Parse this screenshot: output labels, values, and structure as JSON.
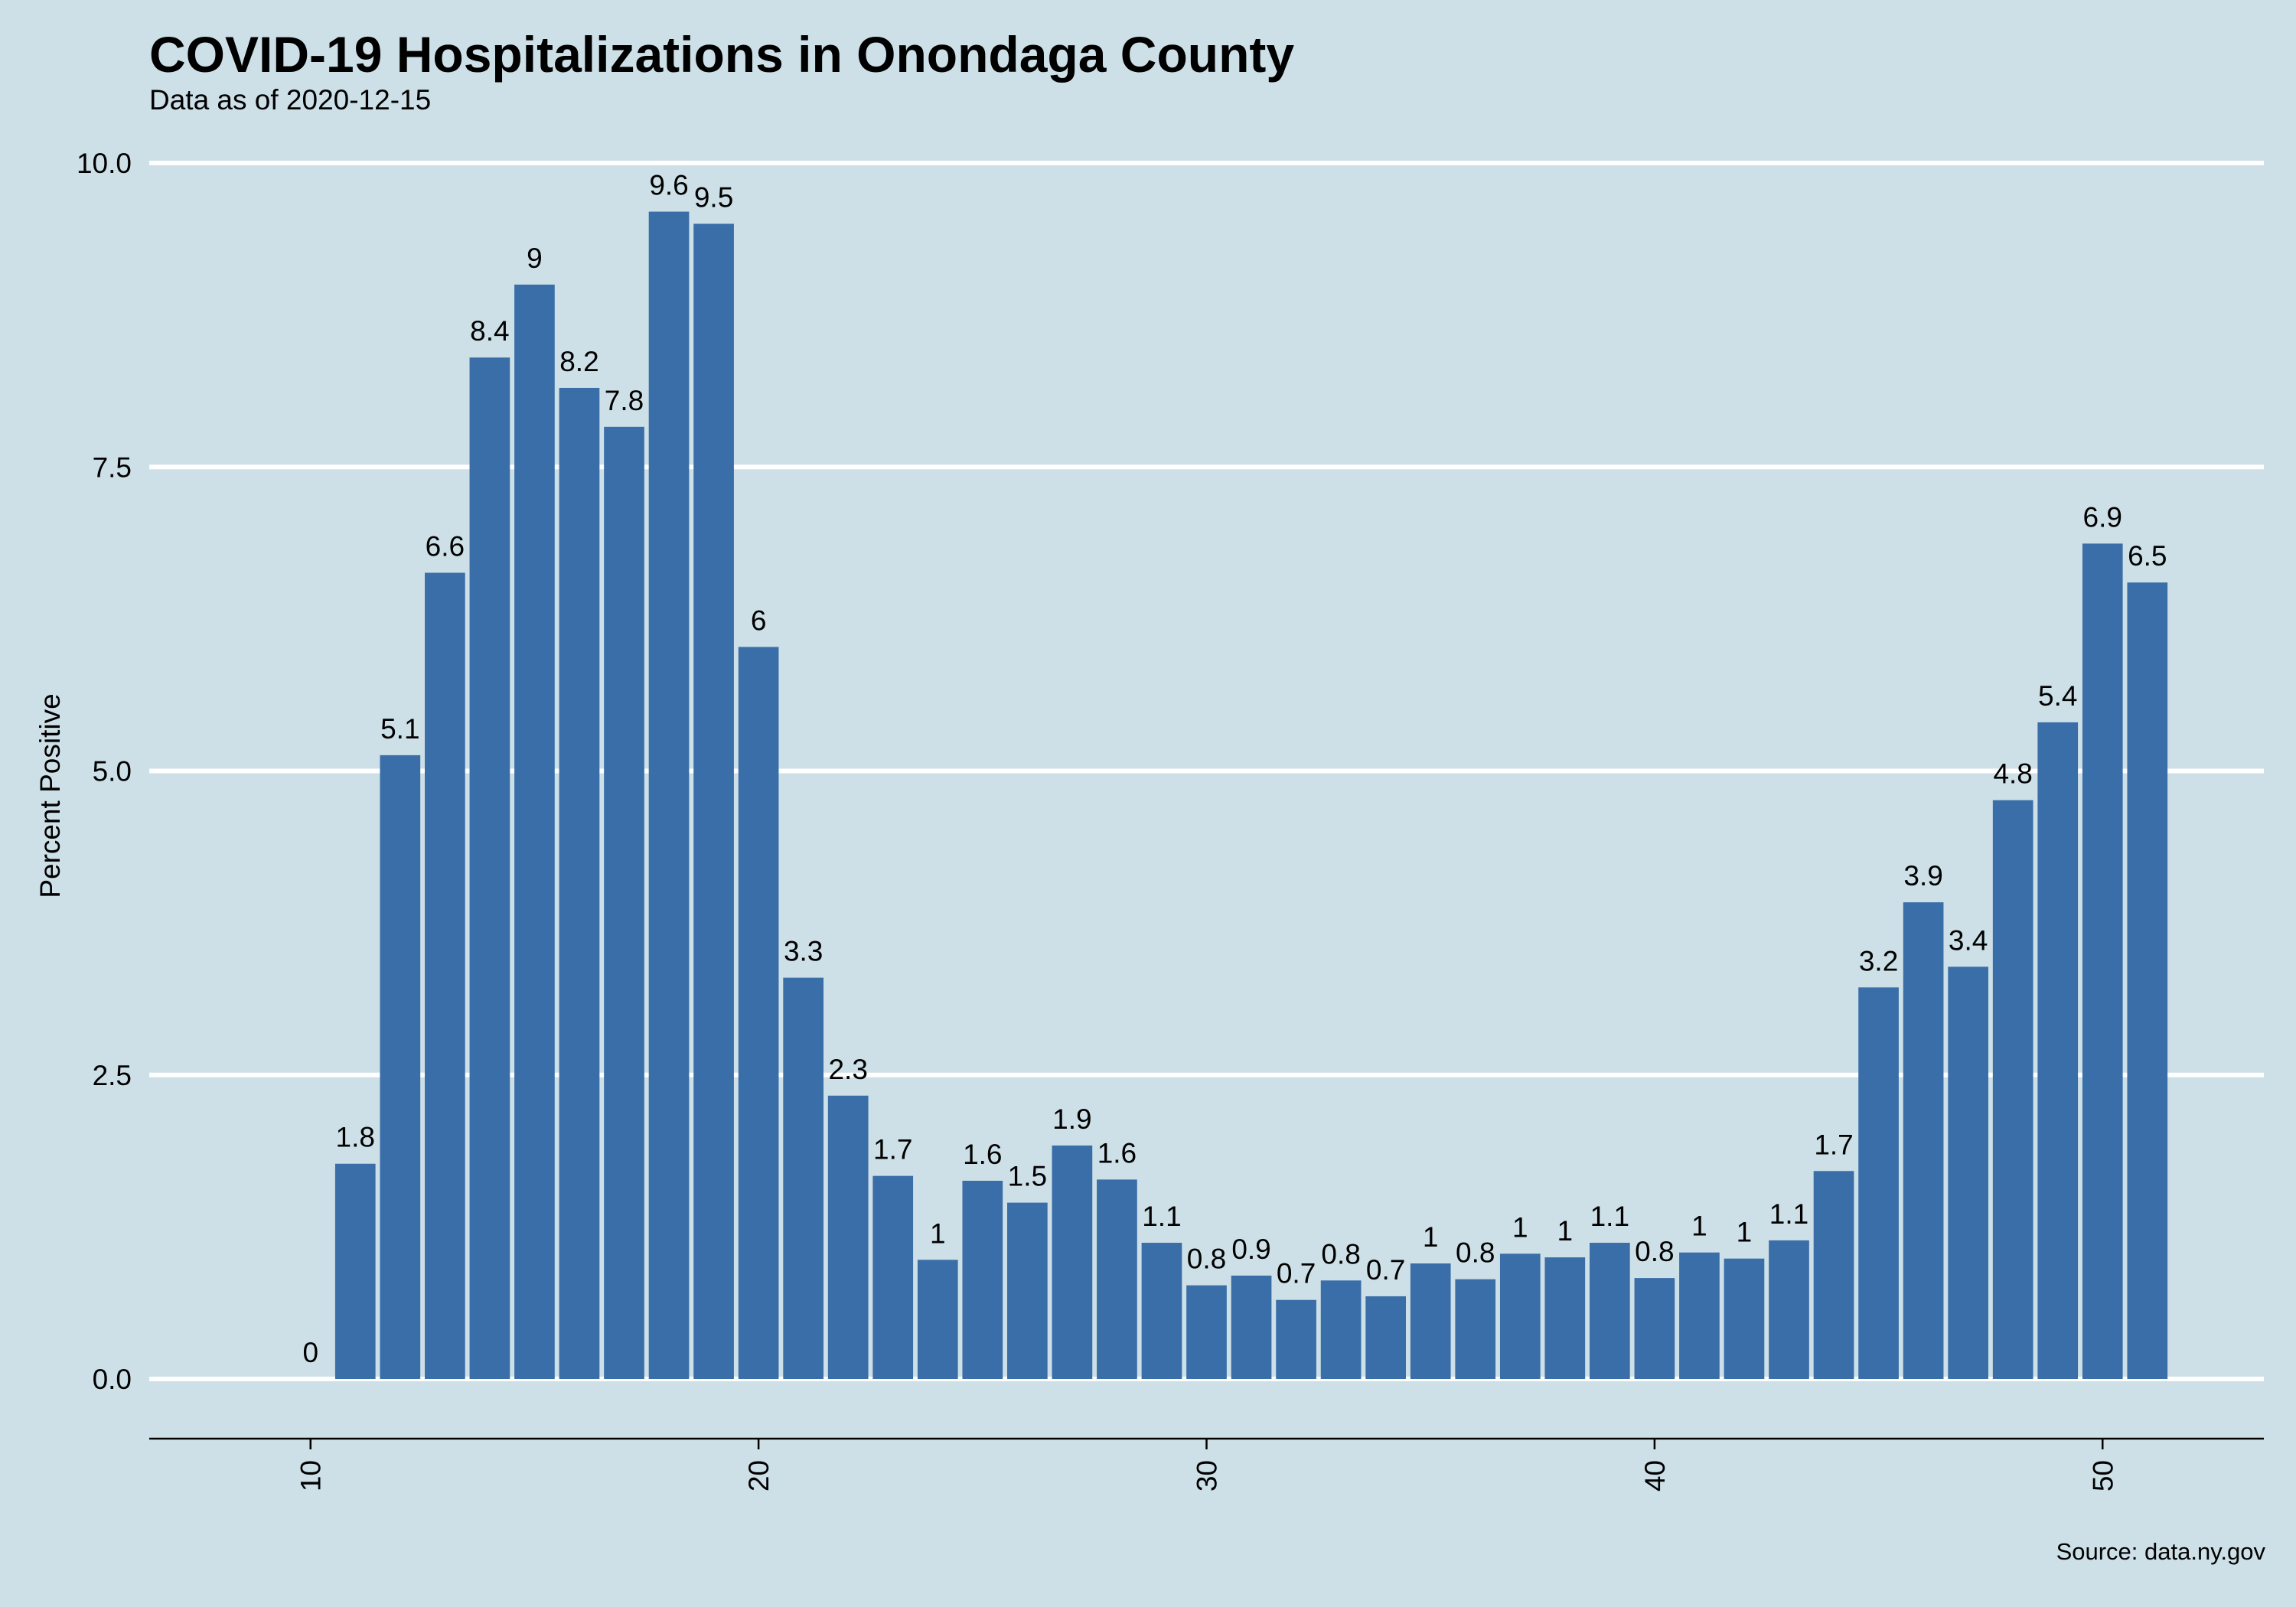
{
  "chart_data": {
    "type": "bar",
    "title": "COVID-19 Hospitalizations in Onondaga County",
    "subtitle": "Data as of 2020-12-15",
    "caption": "Source: data.ny.gov",
    "xlabel": "",
    "ylabel": "Percent Positive",
    "x": [
      10,
      11,
      12,
      13,
      14,
      15,
      16,
      17,
      18,
      19,
      20,
      21,
      22,
      23,
      24,
      25,
      26,
      27,
      28,
      29,
      30,
      31,
      32,
      33,
      34,
      35,
      36,
      37,
      38,
      39,
      40,
      41,
      42,
      43,
      44,
      45,
      46,
      47,
      48,
      49,
      50,
      51
    ],
    "values": [
      0,
      1.77,
      5.13,
      6.63,
      8.4,
      9.0,
      8.15,
      7.83,
      9.6,
      9.5,
      6.02,
      3.3,
      2.33,
      1.67,
      0.98,
      1.63,
      1.45,
      1.92,
      1.64,
      1.12,
      0.77,
      0.85,
      0.65,
      0.81,
      0.68,
      0.95,
      0.82,
      1.03,
      1.0,
      1.12,
      0.83,
      1.04,
      0.99,
      1.14,
      1.71,
      3.22,
      3.92,
      3.39,
      4.76,
      5.4,
      6.87,
      6.55
    ],
    "value_labels": [
      "0",
      "1.8",
      "5.1",
      "6.6",
      "8.4",
      "9",
      "8.2",
      "7.8",
      "9.6",
      "9.5",
      "6",
      "3.3",
      "2.3",
      "1.7",
      "1",
      "1.6",
      "1.5",
      "1.9",
      "1.6",
      "1.1",
      "0.8",
      "0.9",
      "0.7",
      "0.8",
      "0.7",
      "1",
      "0.8",
      "1",
      "1",
      "1.1",
      "0.8",
      "1",
      "1",
      "1.1",
      "1.7",
      "3.2",
      "3.9",
      "3.4",
      "4.8",
      "5.4",
      "6.9",
      "6.5"
    ],
    "xlim": [
      6.4,
      53.6
    ],
    "ylim": [
      -0.5,
      10.0
    ],
    "x_ticks": [
      10,
      20,
      30,
      40,
      50
    ],
    "x_tick_labels": [
      "10",
      "20",
      "30",
      "40",
      "50"
    ],
    "y_ticks": [
      0,
      2.5,
      5,
      7.5,
      10
    ],
    "y_tick_labels": [
      "0.0",
      "2.5",
      "5.0",
      "7.5",
      "10.0"
    ],
    "grid": "horizontal",
    "legend": "none",
    "colors": {
      "background": "#cde0e7",
      "bar": "#3a6ea8",
      "grid": "#ffffff",
      "axis": "#000000"
    }
  }
}
